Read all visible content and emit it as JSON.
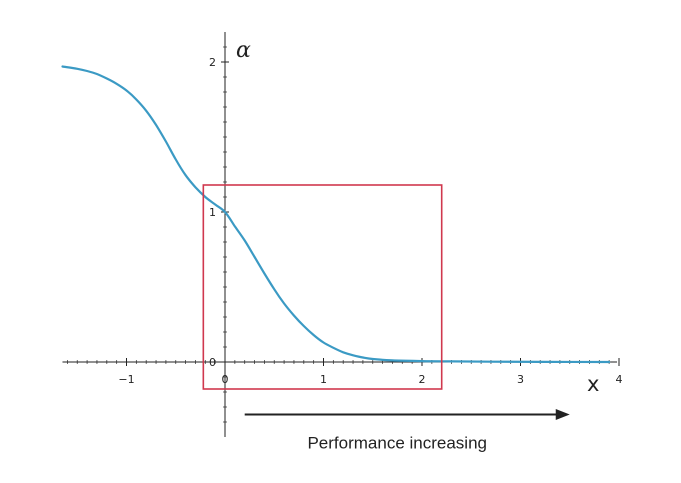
{
  "chart_data": {
    "type": "line",
    "xlabel": "x",
    "ylabel": "α",
    "xlim": [
      -1.65,
      3.98
    ],
    "ylim": [
      -0.5,
      2.2
    ],
    "x_ticks": [
      {
        "value": -1,
        "label": "−1"
      },
      {
        "value": 0,
        "label": "0"
      },
      {
        "value": 1,
        "label": "1"
      },
      {
        "value": 2,
        "label": "2"
      },
      {
        "value": 3,
        "label": "3"
      },
      {
        "value": 4,
        "label": "4"
      }
    ],
    "y_ticks": [
      {
        "value": 0,
        "label": "0"
      },
      {
        "value": 1,
        "label": "1"
      },
      {
        "value": 2,
        "label": "2"
      }
    ],
    "series": [
      {
        "color": "#3b9ac4",
        "points": [
          [
            -1.65,
            1.97
          ],
          [
            -1.5,
            1.955
          ],
          [
            -1.4,
            1.94
          ],
          [
            -1.3,
            1.92
          ],
          [
            -1.2,
            1.89
          ],
          [
            -1.1,
            1.855
          ],
          [
            -1.0,
            1.81
          ],
          [
            -0.9,
            1.75
          ],
          [
            -0.8,
            1.675
          ],
          [
            -0.7,
            1.58
          ],
          [
            -0.6,
            1.47
          ],
          [
            -0.5,
            1.35
          ],
          [
            -0.4,
            1.245
          ],
          [
            -0.3,
            1.165
          ],
          [
            -0.2,
            1.1
          ],
          [
            -0.1,
            1.05
          ],
          [
            0.0,
            1.0
          ],
          [
            0.1,
            0.905
          ],
          [
            0.2,
            0.81
          ],
          [
            0.3,
            0.7
          ],
          [
            0.4,
            0.59
          ],
          [
            0.5,
            0.485
          ],
          [
            0.6,
            0.39
          ],
          [
            0.7,
            0.31
          ],
          [
            0.8,
            0.24
          ],
          [
            0.9,
            0.18
          ],
          [
            1.0,
            0.13
          ],
          [
            1.1,
            0.095
          ],
          [
            1.2,
            0.065
          ],
          [
            1.3,
            0.045
          ],
          [
            1.4,
            0.03
          ],
          [
            1.5,
            0.02
          ],
          [
            1.7,
            0.011
          ],
          [
            2.0,
            0.006
          ],
          [
            2.3,
            0.004
          ],
          [
            2.7,
            0.002
          ],
          [
            3.2,
            0.001
          ],
          [
            3.9,
            0.0
          ]
        ]
      }
    ],
    "highlight_box": {
      "x": [
        -0.22,
        2.2
      ],
      "y": [
        -0.18,
        1.18
      ],
      "color": "#d0384e"
    },
    "annotation": {
      "text": "Performance increasing",
      "arrow_from_x": 0.2,
      "arrow_to_x": 3.5,
      "arrow_y": -0.35
    }
  }
}
